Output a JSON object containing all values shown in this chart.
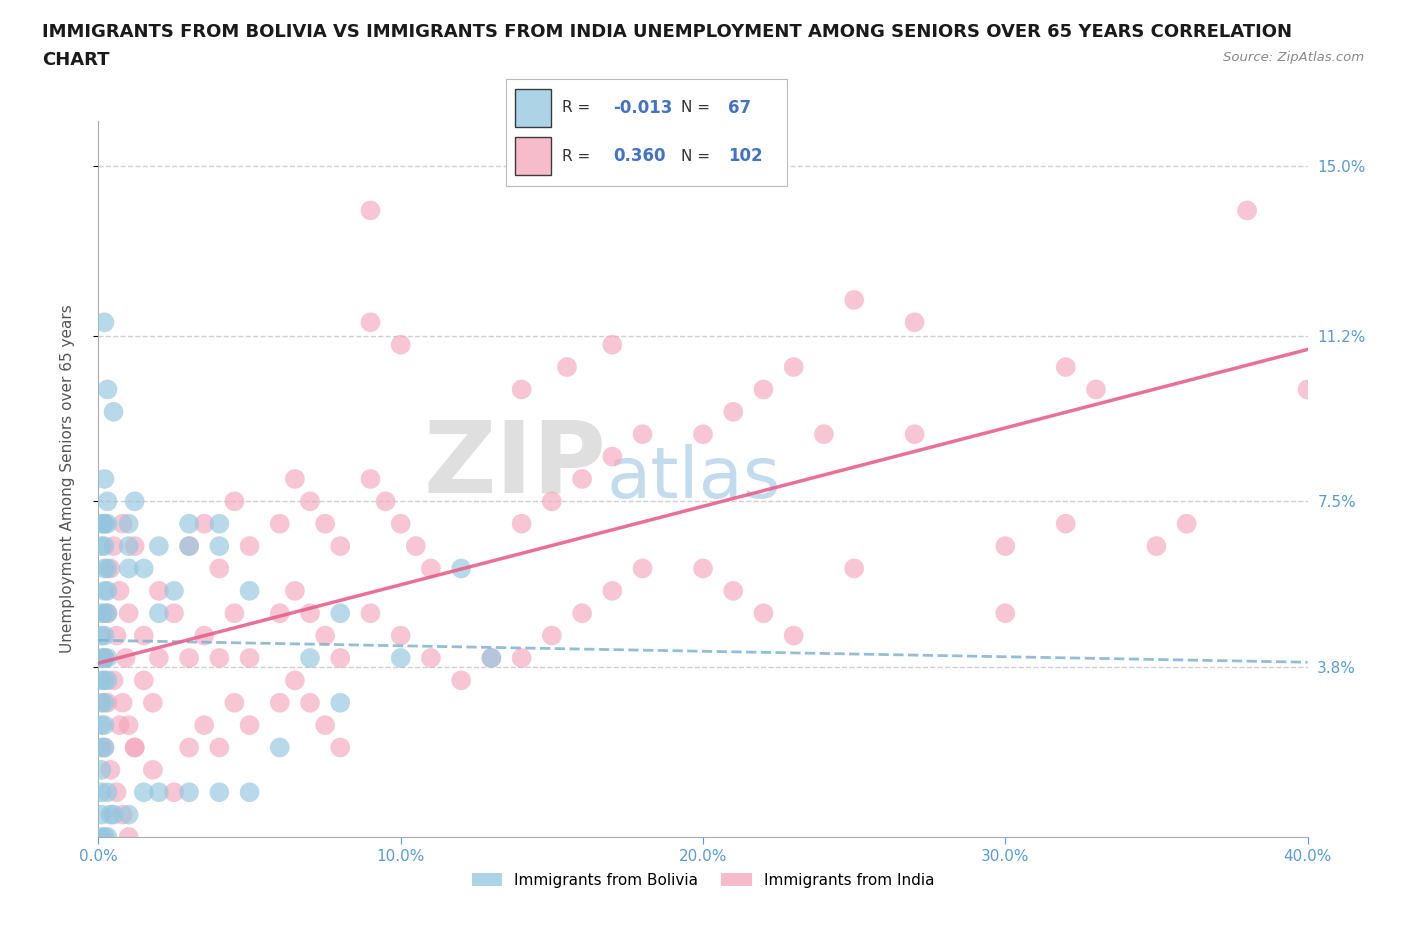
{
  "title_line1": "IMMIGRANTS FROM BOLIVIA VS IMMIGRANTS FROM INDIA UNEMPLOYMENT AMONG SENIORS OVER 65 YEARS CORRELATION",
  "title_line2": "CHART",
  "source": "Source: ZipAtlas.com",
  "ylabel": "Unemployment Among Seniors over 65 years",
  "xlim": [
    0.0,
    0.4
  ],
  "ylim": [
    0.0,
    0.16
  ],
  "xticks": [
    0.0,
    0.1,
    0.2,
    0.3,
    0.4
  ],
  "xticklabels": [
    "0.0%",
    "10.0%",
    "20.0%",
    "30.0%",
    "40.0%"
  ],
  "ytick_values": [
    0.038,
    0.075,
    0.112,
    0.15
  ],
  "ytick_labels": [
    "3.8%",
    "7.5%",
    "11.2%",
    "15.0%"
  ],
  "bolivia_color": "#92c5de",
  "india_color": "#f4a6bc",
  "bolivia_R": -0.013,
  "bolivia_N": 67,
  "india_R": 0.36,
  "india_N": 102,
  "bolivia_line_color": "#4472C4",
  "india_line_color": "#e8608a",
  "watermark_zip": "ZIP",
  "watermark_atlas": "atlas",
  "background_color": "#ffffff",
  "grid_color": "#d0d0d0",
  "tick_label_color": "#5b9bd5",
  "title_fontsize": 13,
  "axis_label_fontsize": 11,
  "tick_fontsize": 11,
  "legend_R_color": "#333333",
  "legend_val_color": "#4472C4"
}
